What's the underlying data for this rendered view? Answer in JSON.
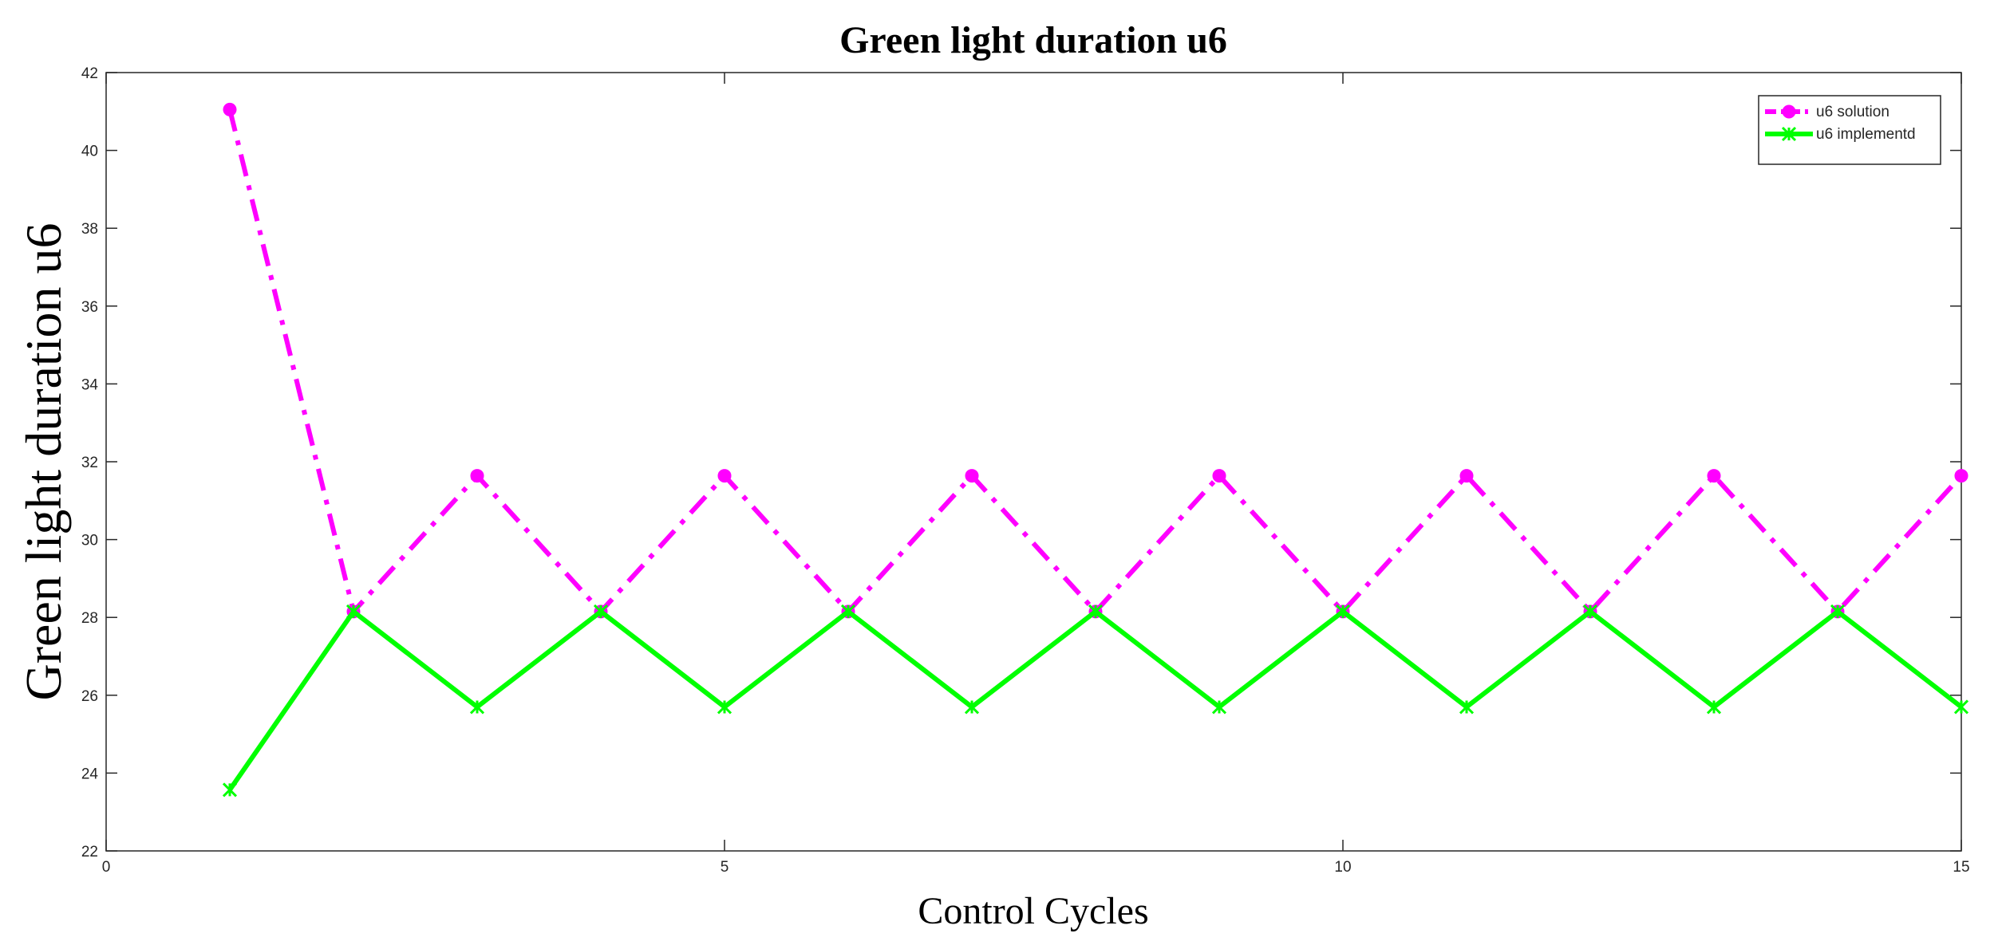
{
  "chart_data": {
    "type": "line",
    "title": "Green light duration u6",
    "x_label": "Control Cycles",
    "y_label": "Green light duration u6",
    "x": [
      1,
      2,
      3,
      4,
      5,
      6,
      7,
      8,
      9,
      10,
      11,
      12,
      13,
      14,
      15
    ],
    "series": [
      {
        "name": "u6 solution",
        "color": "#ff00ff",
        "linestyle": "dashdot",
        "marker": "o",
        "values": [
          41.05,
          28.15,
          31.64,
          28.15,
          31.64,
          28.15,
          31.64,
          28.15,
          31.64,
          28.15,
          31.64,
          28.15,
          31.64,
          28.15,
          31.64
        ]
      },
      {
        "name": "u6 implementd",
        "color": "#00ff00",
        "linestyle": "solid",
        "marker": "x",
        "values": [
          23.57,
          28.15,
          25.7,
          28.15,
          25.7,
          28.15,
          25.7,
          28.15,
          25.7,
          28.15,
          25.7,
          28.15,
          25.7,
          28.15,
          25.7
        ]
      }
    ],
    "xlim": [
      0,
      15
    ],
    "xticks": [
      0,
      5,
      10,
      15
    ],
    "ylim": [
      22,
      42
    ],
    "yticks": [
      22,
      24,
      26,
      28,
      30,
      32,
      34,
      36,
      38,
      40,
      42
    ],
    "legend": "top-right"
  }
}
